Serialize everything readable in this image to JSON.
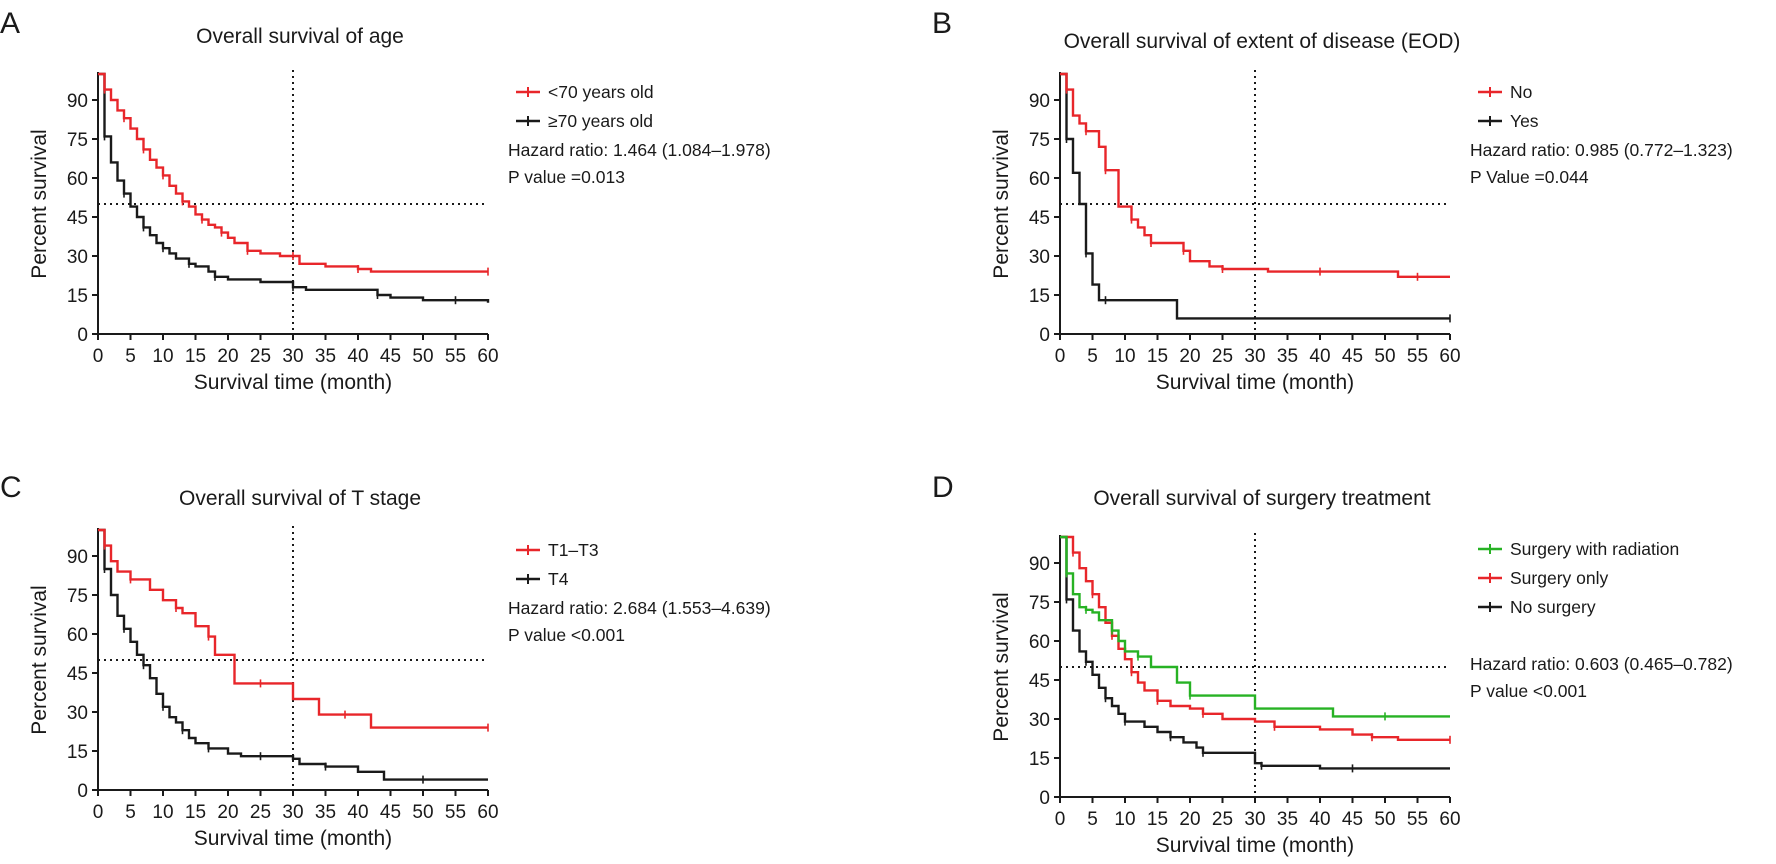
{
  "chart_data": [
    {
      "panel": "A",
      "type": "line",
      "title": "Overall survival of age",
      "xlabel": "Survival time (month)",
      "ylabel": "Percent survival",
      "xlim": [
        0,
        60
      ],
      "ylim": [
        0,
        100
      ],
      "xticks": [
        0,
        5,
        10,
        15,
        20,
        25,
        30,
        35,
        40,
        45,
        50,
        55,
        60
      ],
      "yticks": [
        0,
        15,
        30,
        45,
        60,
        75,
        90
      ],
      "reference_lines": {
        "x": 30,
        "y": 50
      },
      "grid": false,
      "legend_position": "right",
      "series": [
        {
          "name": "<70 years old",
          "color": "#e8262a",
          "x": [
            0,
            1,
            2,
            3,
            4,
            5,
            6,
            7,
            8,
            9,
            10,
            11,
            12,
            13,
            14,
            15,
            16,
            17,
            18,
            19,
            20,
            21,
            23,
            25,
            28,
            30,
            31,
            35,
            40,
            42,
            50,
            60
          ],
          "y": [
            100,
            94,
            90,
            86,
            83,
            79,
            75,
            71,
            67,
            64,
            61,
            57,
            54,
            51,
            49,
            46,
            44,
            42,
            41,
            39,
            37,
            35,
            32,
            31,
            30,
            30,
            27,
            26,
            25,
            24,
            24,
            24
          ]
        },
        {
          "name": "≥70 years old",
          "color": "#1a1a1a",
          "x": [
            0,
            1,
            2,
            3,
            4,
            5,
            6,
            7,
            8,
            9,
            10,
            11,
            12,
            14,
            15,
            17,
            18,
            20,
            25,
            30,
            32,
            40,
            43,
            45,
            50,
            55,
            60
          ],
          "y": [
            100,
            76,
            66,
            59,
            54,
            49,
            45,
            41,
            38,
            35,
            33,
            31,
            29,
            27,
            26,
            24,
            22,
            21,
            20,
            18,
            17,
            17,
            15,
            14,
            13,
            13,
            12
          ]
        }
      ],
      "annotations": [
        "Hazard ratio: 1.464 (1.084–1.978)",
        "P value =0.013"
      ]
    },
    {
      "panel": "B",
      "type": "line",
      "title": "Overall survival of extent of disease (EOD)",
      "xlabel": "Survival time (month)",
      "ylabel": "Percent survival",
      "xlim": [
        0,
        60
      ],
      "ylim": [
        0,
        100
      ],
      "xticks": [
        0,
        5,
        10,
        15,
        20,
        25,
        30,
        35,
        40,
        45,
        50,
        55,
        60
      ],
      "yticks": [
        0,
        15,
        30,
        45,
        60,
        75,
        90
      ],
      "reference_lines": {
        "x": 30,
        "y": 50
      },
      "grid": false,
      "legend_position": "right",
      "series": [
        {
          "name": "No",
          "color": "#e8262a",
          "x": [
            0,
            1,
            2,
            3,
            4,
            5,
            6,
            7,
            9,
            10,
            11,
            12,
            13,
            14,
            15,
            17,
            19,
            20,
            23,
            25,
            30,
            32,
            40,
            45,
            52,
            55,
            60
          ],
          "y": [
            100,
            94,
            84,
            81,
            78,
            78,
            72,
            63,
            49,
            49,
            44,
            41,
            38,
            35,
            35,
            35,
            32,
            28,
            26,
            25,
            25,
            24,
            24,
            24,
            22,
            22,
            22
          ]
        },
        {
          "name": "Yes",
          "color": "#1a1a1a",
          "x": [
            0,
            1,
            2,
            3,
            4,
            5,
            6,
            7,
            18,
            30,
            60
          ],
          "y": [
            100,
            75,
            62,
            50,
            31,
            19,
            13,
            13,
            6,
            6,
            6
          ]
        }
      ],
      "annotations": [
        "Hazard ratio: 0.985 (0.772–1.323)",
        "P Value =0.044"
      ]
    },
    {
      "panel": "C",
      "type": "line",
      "title": "Overall survival of T stage",
      "xlabel": "Survival time (month)",
      "ylabel": "Percent survival",
      "xlim": [
        0,
        60
      ],
      "ylim": [
        0,
        100
      ],
      "xticks": [
        0,
        5,
        10,
        15,
        20,
        25,
        30,
        35,
        40,
        45,
        50,
        55,
        60
      ],
      "yticks": [
        0,
        15,
        30,
        45,
        60,
        75,
        90
      ],
      "reference_lines": {
        "x": 30,
        "y": 50
      },
      "grid": false,
      "legend_position": "right",
      "series": [
        {
          "name": "T1–T3",
          "color": "#e8262a",
          "x": [
            0,
            1,
            2,
            3,
            5,
            8,
            10,
            12,
            13,
            15,
            17,
            18,
            21,
            25,
            30,
            34,
            38,
            42,
            50,
            60
          ],
          "y": [
            100,
            94,
            88,
            84,
            81,
            77,
            73,
            70,
            68,
            63,
            59,
            52,
            41,
            41,
            35,
            29,
            29,
            24,
            24,
            24
          ]
        },
        {
          "name": "T4",
          "color": "#1a1a1a",
          "x": [
            0,
            1,
            2,
            3,
            4,
            5,
            6,
            7,
            8,
            9,
            10,
            11,
            12,
            13,
            14,
            15,
            17,
            20,
            22,
            25,
            30,
            31,
            35,
            40,
            44,
            50,
            60
          ],
          "y": [
            100,
            85,
            75,
            67,
            62,
            57,
            52,
            48,
            43,
            37,
            32,
            28,
            26,
            23,
            20,
            18,
            16,
            14,
            13,
            13,
            12,
            10,
            9,
            7,
            4,
            4,
            4
          ]
        }
      ],
      "annotations": [
        "Hazard ratio: 2.684 (1.553–4.639)",
        "P value <0.001"
      ]
    },
    {
      "panel": "D",
      "type": "line",
      "title": "Overall survival of surgery treatment",
      "xlabel": "Survival time (month)",
      "ylabel": "Percent survival",
      "xlim": [
        0,
        60
      ],
      "ylim": [
        0,
        100
      ],
      "xticks": [
        0,
        5,
        10,
        15,
        20,
        25,
        30,
        35,
        40,
        45,
        50,
        55,
        60
      ],
      "yticks": [
        0,
        15,
        30,
        45,
        60,
        75,
        90
      ],
      "reference_lines": {
        "x": 30,
        "y": 50
      },
      "grid": false,
      "legend_position": "right",
      "series": [
        {
          "name": "Surgery with radiation",
          "color": "#27b224",
          "x": [
            0,
            1,
            2,
            3,
            4,
            5,
            6,
            8,
            9,
            10,
            12,
            14,
            18,
            20,
            30,
            42,
            50,
            60
          ],
          "y": [
            100,
            86,
            78,
            73,
            72,
            71,
            68,
            64,
            60,
            56,
            54,
            50,
            44,
            39,
            34,
            31,
            31,
            31
          ]
        },
        {
          "name": "Surgery only",
          "color": "#e8262a",
          "x": [
            0,
            2,
            3,
            4,
            5,
            6,
            7,
            8,
            9,
            10,
            11,
            12,
            13,
            15,
            17,
            20,
            22,
            25,
            30,
            33,
            40,
            45,
            48,
            52,
            55,
            60
          ],
          "y": [
            100,
            94,
            88,
            83,
            78,
            73,
            67,
            62,
            57,
            53,
            48,
            44,
            41,
            37,
            35,
            34,
            32,
            30,
            29,
            27,
            26,
            24,
            23,
            22,
            22,
            22
          ]
        },
        {
          "name": "No surgery",
          "color": "#1a1a1a",
          "x": [
            0,
            1,
            2,
            3,
            4,
            5,
            6,
            7,
            8,
            9,
            10,
            13,
            15,
            17,
            19,
            21,
            22,
            27,
            30,
            31,
            38,
            40,
            45,
            60
          ],
          "y": [
            100,
            76,
            64,
            56,
            52,
            47,
            42,
            38,
            35,
            32,
            29,
            27,
            25,
            23,
            21,
            19,
            17,
            17,
            13,
            12,
            12,
            11,
            11,
            11
          ]
        }
      ],
      "annotations": [
        "Hazard ratio: 0.603 (0.465–0.782)",
        "P value <0.001"
      ]
    }
  ]
}
